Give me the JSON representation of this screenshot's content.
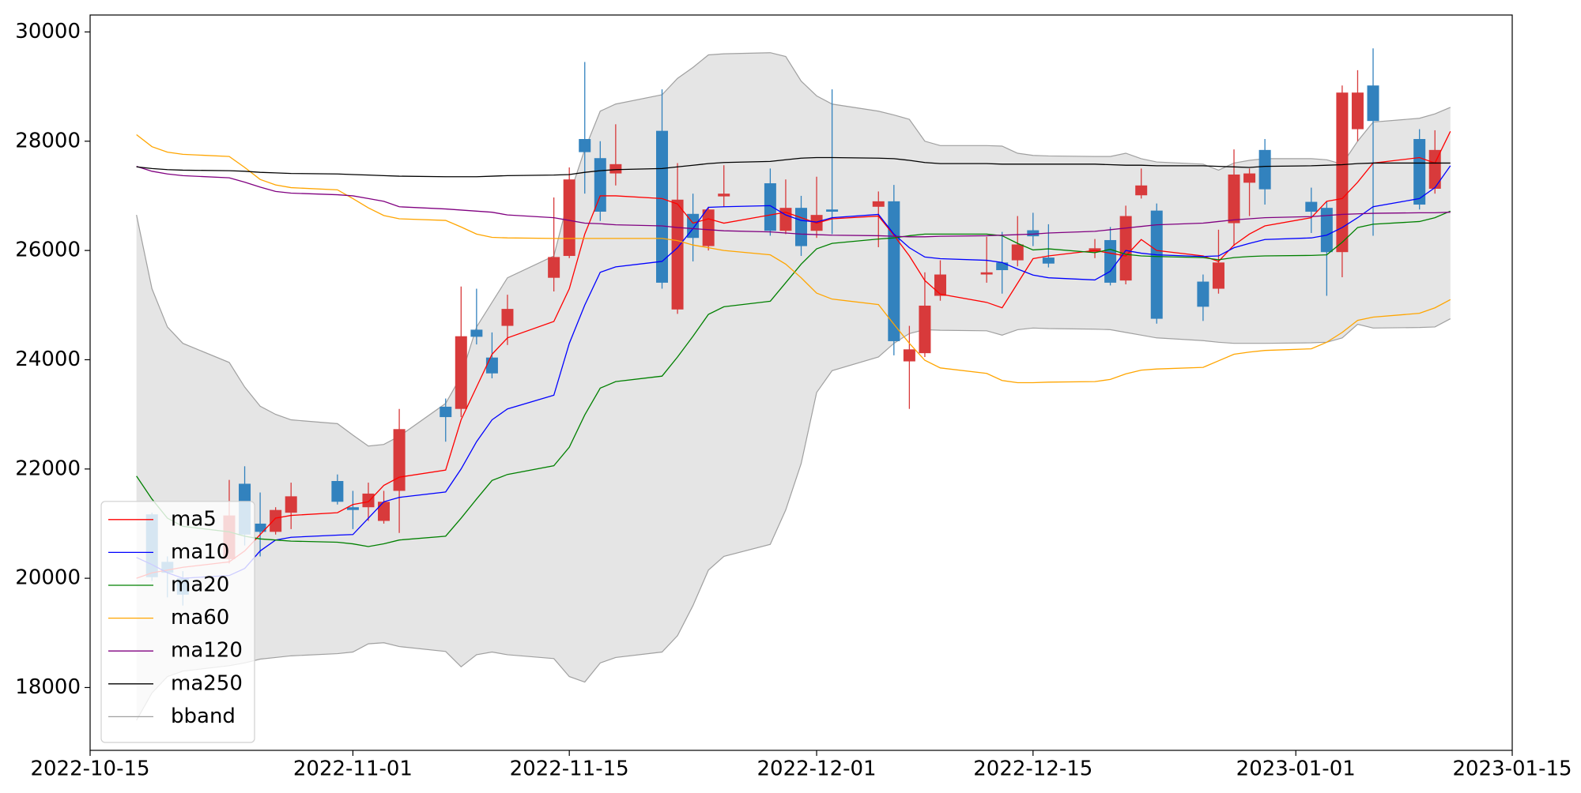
{
  "chart_data": {
    "type": "candlestick",
    "x": [
      "2022-10-18",
      "2022-10-19",
      "2022-10-20",
      "2022-10-21",
      "2022-10-24",
      "2022-10-25",
      "2022-10-26",
      "2022-10-27",
      "2022-10-28",
      "2022-10-31",
      "2022-11-01",
      "2022-11-02",
      "2022-11-03",
      "2022-11-04",
      "2022-11-07",
      "2022-11-08",
      "2022-11-09",
      "2022-11-10",
      "2022-11-11",
      "2022-11-14",
      "2022-11-15",
      "2022-11-16",
      "2022-11-17",
      "2022-11-18",
      "2022-11-21",
      "2022-11-22",
      "2022-11-23",
      "2022-11-24",
      "2022-11-25",
      "2022-11-28",
      "2022-11-29",
      "2022-11-30",
      "2022-12-01",
      "2022-12-02",
      "2022-12-05",
      "2022-12-06",
      "2022-12-07",
      "2022-12-08",
      "2022-12-09",
      "2022-12-12",
      "2022-12-13",
      "2022-12-14",
      "2022-12-15",
      "2022-12-16",
      "2022-12-19",
      "2022-12-20",
      "2022-12-21",
      "2022-12-22",
      "2022-12-23",
      "2022-12-26",
      "2022-12-27",
      "2022-12-28",
      "2022-12-29",
      "2022-12-30",
      "2023-01-02",
      "2023-01-03",
      "2023-01-04",
      "2023-01-05",
      "2023-01-06",
      "2023-01-09",
      "2023-01-10",
      "2023-01-11"
    ],
    "xlim": [
      "2022-10-15",
      "2023-01-15"
    ],
    "xticks": [
      "2022-10-15",
      "2022-11-01",
      "2022-11-15",
      "2022-12-01",
      "2022-12-15",
      "2023-01-01",
      "2023-01-15"
    ],
    "ylim": [
      16850,
      30310
    ],
    "yticks": [
      18000,
      20000,
      22000,
      24000,
      26000,
      28000,
      30000
    ],
    "legend": "lower left",
    "candles": {
      "up_color": "#d83a3b",
      "down_color": "#3282be",
      "open": [
        null,
        21170,
        20300,
        20000,
        20350,
        21730,
        21000,
        20850,
        21200,
        21780,
        21300,
        21300,
        21050,
        21600,
        23140,
        23100,
        24550,
        24040,
        24620,
        25500,
        25900,
        28040,
        27690,
        27410,
        28190,
        24920,
        26670,
        26080,
        26990,
        27230,
        26360,
        26780,
        26360,
        26750,
        26800,
        26900,
        23970,
        24120,
        25170,
        25560,
        25780,
        25820,
        26370,
        25870,
        25970,
        26190,
        25450,
        27010,
        26730,
        25430,
        25300,
        26500,
        27240,
        27840,
        26890,
        26780,
        25970,
        28220,
        29020,
        28040,
        27130,
        null
      ],
      "high": [
        null,
        21200,
        20400,
        20130,
        21800,
        22050,
        21570,
        21300,
        21750,
        21900,
        21600,
        21750,
        21600,
        23100,
        23290,
        25340,
        25300,
        24500,
        25190,
        26970,
        27520,
        29450,
        28000,
        28310,
        28950,
        27600,
        27040,
        26800,
        27560,
        27500,
        27300,
        27000,
        27350,
        28950,
        27080,
        27200,
        24620,
        25600,
        25820,
        26250,
        26340,
        26630,
        26690,
        26480,
        26210,
        26430,
        26820,
        27500,
        26860,
        25560,
        26380,
        27850,
        27500,
        28040,
        27150,
        26890,
        29020,
        29300,
        29700,
        28220,
        28200,
        null
      ],
      "low": [
        null,
        19950,
        19650,
        19500,
        20270,
        20600,
        20400,
        20800,
        20900,
        21350,
        20900,
        21050,
        21000,
        20830,
        22500,
        22950,
        24280,
        23660,
        24270,
        25250,
        25860,
        27040,
        26540,
        27190,
        25300,
        24840,
        25800,
        26000,
        26800,
        26270,
        26300,
        25900,
        26230,
        26300,
        26060,
        24080,
        23100,
        24050,
        25080,
        25410,
        25210,
        25710,
        26080,
        25690,
        25860,
        25360,
        25380,
        26950,
        24660,
        24710,
        25210,
        26080,
        26630,
        26840,
        26320,
        25170,
        25510,
        28000,
        26270,
        26750,
        27040,
        null
      ],
      "close": [
        null,
        20020,
        20100,
        19700,
        21150,
        20800,
        20850,
        21250,
        21500,
        21400,
        21250,
        21550,
        21400,
        22730,
        22950,
        24430,
        24420,
        23750,
        24930,
        25880,
        27300,
        27800,
        26710,
        27580,
        25410,
        26930,
        26230,
        26750,
        27040,
        26360,
        26780,
        26080,
        26650,
        26710,
        26900,
        24340,
        24190,
        24990,
        25560,
        25600,
        25640,
        26110,
        26260,
        25760,
        26040,
        25410,
        26630,
        27190,
        24750,
        24970,
        25780,
        27390,
        27410,
        27120,
        26710,
        25970,
        28890,
        28890,
        28370,
        26840,
        27840,
        null
      ]
    },
    "series": [
      {
        "name": "ma5",
        "color": "#ff0000",
        "values": [
          20000,
          20100,
          20150,
          20200,
          20300,
          20500,
          20800,
          21100,
          21150,
          21200,
          21350,
          21400,
          21700,
          21850,
          21980,
          22900,
          23500,
          24100,
          24400,
          24700,
          25300,
          26300,
          27000,
          27000,
          26950,
          26850,
          26500,
          26580,
          26500,
          26650,
          26700,
          26600,
          26500,
          26580,
          26630,
          26280,
          25900,
          25450,
          25200,
          25050,
          24950,
          25400,
          25850,
          25900,
          26000,
          25950,
          25900,
          26200,
          26000,
          25900,
          25800,
          26100,
          26300,
          26450,
          26600,
          26900,
          26950,
          27250,
          27600,
          27700,
          27600,
          28180
        ]
      },
      {
        "name": "ma10",
        "color": "#0000ff",
        "values": [
          20380,
          20250,
          20100,
          20000,
          20050,
          20180,
          20500,
          20700,
          20750,
          20790,
          20800,
          21100,
          21400,
          21480,
          21580,
          22000,
          22500,
          22900,
          23100,
          23350,
          24300,
          25000,
          25600,
          25700,
          25800,
          26050,
          26400,
          26790,
          26800,
          26820,
          26650,
          26550,
          26520,
          26600,
          26660,
          26300,
          26050,
          25880,
          25850,
          25820,
          25780,
          25660,
          25550,
          25500,
          25460,
          25620,
          26000,
          25950,
          25920,
          25890,
          25900,
          26050,
          26130,
          26200,
          26230,
          26280,
          26420,
          26600,
          26800,
          26950,
          27150,
          27550
        ]
      },
      {
        "name": "ma20",
        "color": "#008000",
        "values": [
          21870,
          21450,
          21100,
          20950,
          20850,
          20770,
          20720,
          20700,
          20680,
          20660,
          20630,
          20580,
          20630,
          20700,
          20770,
          21100,
          21450,
          21790,
          21900,
          22060,
          22400,
          22990,
          23480,
          23600,
          23700,
          24050,
          24430,
          24830,
          24970,
          25070,
          25410,
          25750,
          26030,
          26130,
          26210,
          26230,
          26270,
          26300,
          26300,
          26300,
          26270,
          26130,
          26010,
          26030,
          25960,
          26020,
          25930,
          25900,
          25890,
          25870,
          25830,
          25870,
          25890,
          25900,
          25910,
          25920,
          26150,
          26420,
          26480,
          26530,
          26600,
          26720
        ]
      },
      {
        "name": "ma60",
        "color": "#ffa500",
        "values": [
          28120,
          27900,
          27800,
          27760,
          27720,
          27520,
          27300,
          27200,
          27150,
          27110,
          26950,
          26780,
          26640,
          26580,
          26550,
          26430,
          26300,
          26240,
          26230,
          26220,
          26220,
          26220,
          26220,
          26220,
          26220,
          26180,
          26100,
          26050,
          26000,
          25920,
          25750,
          25500,
          25220,
          25110,
          25010,
          24650,
          24300,
          23990,
          23850,
          23750,
          23620,
          23580,
          23580,
          23590,
          23600,
          23640,
          23740,
          23810,
          23830,
          23860,
          23980,
          24100,
          24140,
          24170,
          24200,
          24320,
          24500,
          24720,
          24780,
          24850,
          24950,
          25100
        ]
      },
      {
        "name": "ma120",
        "color": "#800080",
        "values": [
          27540,
          27450,
          27400,
          27370,
          27330,
          27250,
          27160,
          27080,
          27050,
          27020,
          27000,
          26950,
          26900,
          26800,
          26760,
          26740,
          26720,
          26700,
          26650,
          26600,
          26550,
          26500,
          26490,
          26470,
          26450,
          26420,
          26400,
          26380,
          26360,
          26340,
          26320,
          26300,
          26290,
          26280,
          26270,
          26260,
          26250,
          26250,
          26260,
          26270,
          26280,
          26290,
          26300,
          26320,
          26350,
          26380,
          26410,
          26440,
          26470,
          26500,
          26530,
          26560,
          26580,
          26600,
          26620,
          26640,
          26660,
          26670,
          26680,
          26690,
          26690,
          26700
        ]
      },
      {
        "name": "ma250",
        "color": "#000000",
        "values": [
          27530,
          27500,
          27480,
          27470,
          27460,
          27450,
          27430,
          27420,
          27410,
          27400,
          27390,
          27380,
          27370,
          27360,
          27350,
          27350,
          27350,
          27360,
          27370,
          27380,
          27390,
          27430,
          27460,
          27480,
          27500,
          27530,
          27560,
          27590,
          27610,
          27630,
          27660,
          27690,
          27700,
          27700,
          27690,
          27680,
          27650,
          27610,
          27590,
          27590,
          27580,
          27580,
          27580,
          27580,
          27580,
          27570,
          27560,
          27560,
          27550,
          27550,
          27540,
          27530,
          27520,
          27540,
          27550,
          27560,
          27570,
          27590,
          27600,
          27600,
          27600,
          27600
        ]
      }
    ],
    "band": {
      "name": "bband",
      "color": "#a0a0a0",
      "fill": "#e5e5e5",
      "upper": [
        26650,
        25300,
        24600,
        24300,
        23950,
        23500,
        23150,
        23000,
        22900,
        22830,
        22620,
        22420,
        22450,
        22600,
        23200,
        23700,
        24600,
        25050,
        25500,
        25900,
        27000,
        27850,
        28550,
        28680,
        28850,
        29150,
        29350,
        29580,
        29600,
        29620,
        29550,
        29100,
        28830,
        28680,
        28550,
        28480,
        28400,
        28000,
        27920,
        27920,
        27910,
        27780,
        27740,
        27730,
        27720,
        27720,
        27780,
        27680,
        27620,
        27580,
        27470,
        27600,
        27650,
        27680,
        27680,
        27660,
        27580,
        28000,
        28350,
        28420,
        28500,
        28620
      ],
      "lower": [
        17400,
        17900,
        18200,
        18300,
        18400,
        18450,
        18520,
        18550,
        18580,
        18620,
        18650,
        18800,
        18820,
        18750,
        18660,
        18380,
        18600,
        18650,
        18600,
        18530,
        18200,
        18100,
        18450,
        18550,
        18650,
        18950,
        19500,
        20150,
        20400,
        20620,
        21250,
        22100,
        23400,
        23800,
        24050,
        24300,
        24480,
        24550,
        24540,
        24530,
        24450,
        24550,
        24580,
        24570,
        24560,
        24550,
        24500,
        24450,
        24400,
        24350,
        24320,
        24300,
        24300,
        24300,
        24310,
        24320,
        24400,
        24650,
        24580,
        24590,
        24600,
        24750
      ]
    }
  }
}
